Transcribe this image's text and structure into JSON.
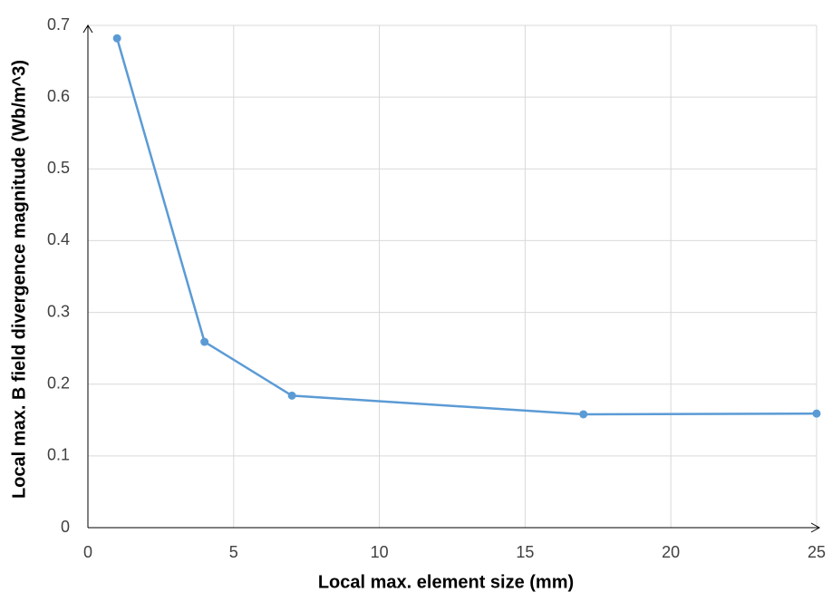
{
  "chart_data": {
    "type": "line",
    "x_label": "Local max. element size (mm)",
    "y_label": "Local max. B field divergence magnitude (Wb/m^3)",
    "x": [
      1,
      4,
      7,
      17,
      25
    ],
    "values": [
      0.682,
      0.259,
      0.184,
      0.158,
      0.159
    ],
    "color": "#5b9bd5",
    "xlim": [
      0,
      25
    ],
    "xticks": [
      0,
      5,
      10,
      15,
      20,
      25
    ],
    "ylim": [
      0,
      0.7
    ],
    "yticks": [
      0,
      0.1,
      0.2,
      0.3,
      0.4,
      0.5,
      0.6,
      0.7
    ],
    "grid": true
  }
}
